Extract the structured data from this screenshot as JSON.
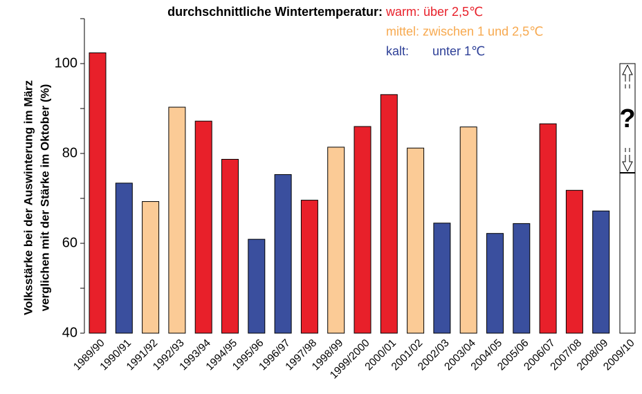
{
  "chart_data": {
    "type": "bar",
    "legend_title": "durchschnittliche Wintertemperatur:",
    "legend": [
      {
        "name": "warm:",
        "desc": "über 2,5℃",
        "color": "#e8202a"
      },
      {
        "name": "mittel:",
        "desc": "zwischen 1 und 2,5℃",
        "color": "#f7a94f",
        "fill": "#fbcb96"
      },
      {
        "name": "kalt:",
        "desc": "unter 1℃",
        "color": "#2d3f97",
        "fill": "#3a4f9e"
      }
    ],
    "ylabel": [
      "Volksstärke bei der Auswinterung im März",
      "verglichen mit der Stärke im Oktober (%)"
    ],
    "categories": [
      "1989/90",
      "1990/91",
      "1991/92",
      "1992/93",
      "1993/94",
      "1994/95",
      "1995/96",
      "1996/97",
      "1997/98",
      "1998/99",
      "1999/2000",
      "2000/01",
      "2001/02",
      "2002/03",
      "2003/04",
      "2004/05",
      "2005/06",
      "2006/07",
      "2007/08",
      "2008/09",
      "2009/10"
    ],
    "values": [
      102.4,
      73.4,
      69.3,
      90.3,
      87.2,
      78.7,
      60.9,
      75.3,
      69.6,
      81.4,
      86.0,
      93.1,
      81.2,
      64.5,
      85.9,
      62.2,
      64.4,
      86.6,
      71.8,
      67.2,
      null
    ],
    "classes": [
      0,
      2,
      1,
      1,
      0,
      0,
      2,
      2,
      0,
      1,
      0,
      0,
      1,
      2,
      1,
      2,
      2,
      0,
      0,
      2,
      null
    ],
    "unknown": {
      "label": "?",
      "category": 20,
      "range": [
        75.7,
        100
      ]
    },
    "ylim": [
      40,
      110
    ],
    "yticks": [
      40,
      60,
      80,
      100
    ],
    "yticks_minor": [
      50,
      70,
      90,
      110
    ]
  }
}
